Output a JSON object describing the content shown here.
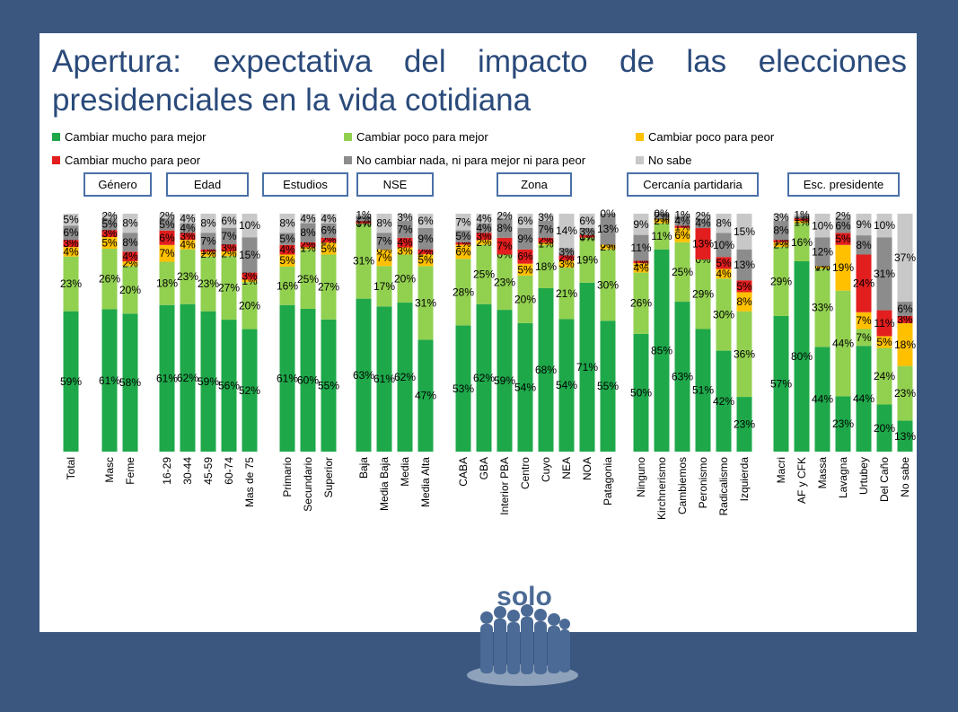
{
  "title": "Apertura: expectativa del impacto de las elecciones presidenciales en la vida cotidiana",
  "legend": [
    {
      "label": "Cambiar mucho para mejor",
      "color": "#1ea84a"
    },
    {
      "label": "Cambiar poco para mejor",
      "color": "#92d050"
    },
    {
      "label": "Cambiar poco para peor",
      "color": "#ffc000"
    },
    {
      "label": "Cambiar mucho para peor",
      "color": "#e21e1e"
    },
    {
      "label": "No cambiar nada, ni para mejor ni para peor",
      "color": "#8c8c8c"
    },
    {
      "label": "No sabe",
      "color": "#c8c8c8"
    }
  ],
  "groups": [
    "Género",
    "Edad",
    "Estudios",
    "NSE",
    "Zona",
    "Cercanía partidaria",
    "Esc. presidente"
  ],
  "logo_text": "solo",
  "chart_data": {
    "type": "bar",
    "stacked": true,
    "series": [
      {
        "name": "Cambiar mucho para mejor",
        "color": "#1ea84a"
      },
      {
        "name": "Cambiar poco para mejor",
        "color": "#92d050"
      },
      {
        "name": "Cambiar poco para peor",
        "color": "#ffc000"
      },
      {
        "name": "Cambiar mucho para peor",
        "color": "#e21e1e"
      },
      {
        "name": "No cambiar nada, ni para mejor ni para peor",
        "color": "#8c8c8c"
      },
      {
        "name": "No sabe",
        "color": "#c8c8c8"
      }
    ],
    "bars": [
      {
        "category": "Total",
        "values": [
          59,
          23,
          4,
          3,
          6,
          5
        ]
      },
      {
        "category": "Masc",
        "values": [
          61,
          26,
          5,
          3,
          5,
          2
        ]
      },
      {
        "category": "Feme",
        "values": [
          58,
          20,
          2,
          4,
          8,
          8
        ]
      },
      {
        "category": "16-29",
        "values": [
          61,
          18,
          7,
          6,
          5,
          2
        ]
      },
      {
        "category": "30-44",
        "values": [
          62,
          23,
          4,
          3,
          4,
          4
        ]
      },
      {
        "category": "45-59",
        "values": [
          59,
          23,
          2,
          1,
          7,
          8
        ]
      },
      {
        "category": "60-74",
        "values": [
          56,
          27,
          2,
          3,
          7,
          6
        ]
      },
      {
        "category": "Mas de 75",
        "values": [
          52,
          20,
          1,
          3,
          15,
          10
        ]
      },
      {
        "category": "Primario",
        "values": [
          61,
          16,
          5,
          4,
          5,
          8
        ]
      },
      {
        "category": "Secundario",
        "values": [
          60,
          25,
          1,
          2,
          8,
          4
        ]
      },
      {
        "category": "Superior",
        "values": [
          55,
          27,
          5,
          2,
          6,
          4
        ]
      },
      {
        "category": "Baja",
        "values": [
          63,
          31,
          0,
          1,
          2,
          1
        ]
      },
      {
        "category": "Media Baja",
        "values": [
          61,
          17,
          7,
          0,
          7,
          8
        ]
      },
      {
        "category": "Media",
        "values": [
          62,
          20,
          3,
          4,
          7,
          3
        ]
      },
      {
        "category": "Media Alta",
        "values": [
          47,
          31,
          5,
          2,
          9,
          6
        ]
      },
      {
        "category": "CABA",
        "values": [
          53,
          28,
          6,
          1,
          5,
          7
        ]
      },
      {
        "category": "GBA",
        "values": [
          62,
          25,
          2,
          3,
          4,
          4
        ]
      },
      {
        "category": "Interior PBA",
        "values": [
          59,
          23,
          0,
          7,
          8,
          2
        ]
      },
      {
        "category": "Centro",
        "values": [
          54,
          20,
          5,
          6,
          9,
          6
        ]
      },
      {
        "category": "Cuyo",
        "values": [
          68,
          18,
          1,
          2,
          7,
          3
        ]
      },
      {
        "category": "NEA",
        "values": [
          54,
          21,
          3,
          2,
          3,
          14
        ]
      },
      {
        "category": "NOA",
        "values": [
          71,
          19,
          0,
          1,
          3,
          6
        ]
      },
      {
        "category": "Patagonia",
        "values": [
          55,
          30,
          2,
          0,
          13,
          0
        ]
      },
      {
        "category": "Ninguno",
        "values": [
          50,
          26,
          4,
          1,
          11,
          9
        ]
      },
      {
        "category": "Kirchnerismo",
        "values": [
          85,
          11,
          2,
          0,
          2,
          0
        ]
      },
      {
        "category": "Cambiemos",
        "values": [
          63,
          25,
          6,
          1,
          4,
          1
        ]
      },
      {
        "category": "Peronismo",
        "values": [
          51,
          29,
          0,
          13,
          4,
          2
        ]
      },
      {
        "category": "Radicalismo",
        "values": [
          42,
          30,
          4,
          5,
          10,
          8
        ]
      },
      {
        "category": "Izquierda",
        "values": [
          23,
          36,
          8,
          5,
          13,
          15
        ]
      },
      {
        "category": "Macri",
        "values": [
          57,
          29,
          2,
          1,
          8,
          3
        ]
      },
      {
        "category": "AF y CFK",
        "values": [
          80,
          16,
          1,
          1,
          1,
          1
        ]
      },
      {
        "category": "Massa",
        "values": [
          44,
          33,
          1,
          0,
          12,
          10
        ]
      },
      {
        "category": "Lavagna",
        "values": [
          23,
          44,
          19,
          5,
          6,
          2
        ]
      },
      {
        "category": "Urtubey",
        "values": [
          44,
          7,
          7,
          24,
          8,
          9
        ]
      },
      {
        "category": "Del Caño",
        "values": [
          20,
          24,
          5,
          11,
          31,
          10
        ]
      },
      {
        "category": "No sabe",
        "values": [
          13,
          23,
          18,
          3,
          6,
          37
        ]
      }
    ],
    "value_unit": "%",
    "ylim": [
      0,
      100
    ]
  }
}
